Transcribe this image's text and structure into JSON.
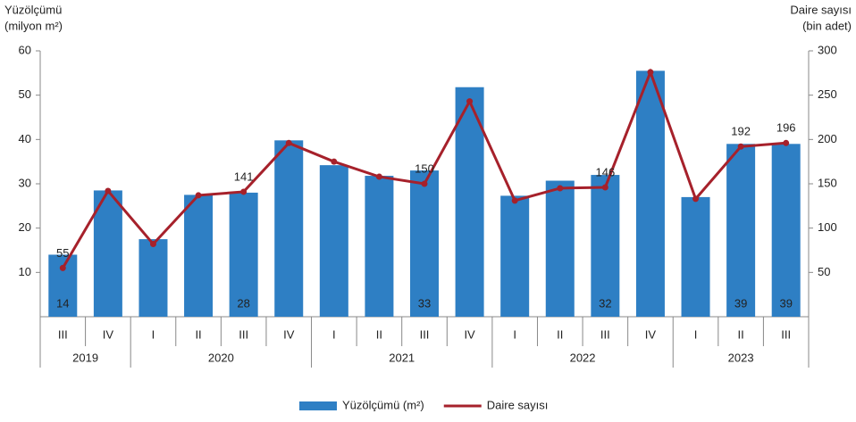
{
  "chart_data": {
    "type": "bar_line",
    "y_title": [
      "Yüzölçümü",
      "(milyon m²)"
    ],
    "y2_title": [
      "Daire sayısı",
      "(bin adet)"
    ],
    "groups": [
      {
        "label": "2019",
        "categories": [
          "III",
          "IV"
        ]
      },
      {
        "label": "2020",
        "categories": [
          "I",
          "II",
          "III",
          "IV"
        ]
      },
      {
        "label": "2021",
        "categories": [
          "I",
          "II",
          "III",
          "IV"
        ]
      },
      {
        "label": "2022",
        "categories": [
          "I",
          "II",
          "III",
          "IV"
        ]
      },
      {
        "label": "2023",
        "categories": [
          "I",
          "II",
          "III"
        ]
      }
    ],
    "series": [
      {
        "name": "Yüzölçümü (m²)",
        "type": "bar",
        "color": "#2e7fc4",
        "values": [
          14,
          28.5,
          17.5,
          27.5,
          28,
          39.8,
          34.2,
          31.8,
          33,
          51.8,
          27.3,
          30.7,
          32,
          55.5,
          27,
          39,
          39
        ],
        "value_labels": [
          14,
          null,
          null,
          null,
          28,
          null,
          null,
          null,
          33,
          null,
          null,
          null,
          32,
          null,
          null,
          39,
          39
        ]
      },
      {
        "name": "Daire sayısı",
        "type": "line",
        "axis": "y2",
        "color": "#a6212b",
        "values": [
          55,
          142,
          82,
          137,
          141,
          196,
          175,
          158,
          150,
          243,
          131,
          145,
          146,
          276,
          133,
          192,
          196
        ],
        "value_labels": [
          55,
          null,
          null,
          null,
          141,
          null,
          null,
          null,
          150,
          null,
          null,
          null,
          146,
          null,
          null,
          192,
          196
        ]
      }
    ],
    "ylim": [
      0,
      60
    ],
    "yticks": [
      10,
      20,
      30,
      40,
      50,
      60
    ],
    "y2lim": [
      0,
      300
    ],
    "y2ticks": [
      50,
      100,
      150,
      200,
      250,
      300
    ],
    "legend": "bottom"
  }
}
